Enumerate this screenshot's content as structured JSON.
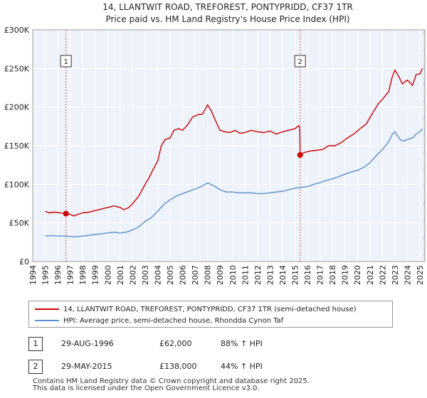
{
  "chart_data": {
    "type": "line",
    "title": "14, LLANTWIT ROAD, TREFOREST, PONTYPRIDD, CF37 1TR",
    "subtitle": "Price paid vs. HM Land Registry's House Price Index (HPI)",
    "xlabel": "",
    "ylabel": "",
    "xlim": [
      1994,
      2025.4
    ],
    "ylim": [
      0,
      300000
    ],
    "x_ticks": [
      "1994",
      "1995",
      "1996",
      "1997",
      "1998",
      "1999",
      "2000",
      "2001",
      "2002",
      "2003",
      "2004",
      "2005",
      "2006",
      "2007",
      "2008",
      "2009",
      "2010",
      "2011",
      "2012",
      "2013",
      "2014",
      "2015",
      "2016",
      "2017",
      "2018",
      "2019",
      "2020",
      "2021",
      "2022",
      "2023",
      "2024",
      "2025"
    ],
    "y_ticks": [
      {
        "value": 0,
        "label": "£0"
      },
      {
        "value": 50000,
        "label": "£50K"
      },
      {
        "value": 100000,
        "label": "£100K"
      },
      {
        "value": 150000,
        "label": "£150K"
      },
      {
        "value": 200000,
        "label": "£200K"
      },
      {
        "value": 250000,
        "label": "£250K"
      },
      {
        "value": 300000,
        "label": "£300K"
      }
    ],
    "grid": true,
    "series": [
      {
        "name": "14, LLANTWIT ROAD, TREFOREST, PONTYPRIDD, CF37 1TR (semi-detached house)",
        "color": "#cc0000",
        "points": [
          [
            1995.0,
            65000
          ],
          [
            1995.3,
            63000
          ],
          [
            1995.7,
            64000
          ],
          [
            1996.0,
            63500
          ],
          [
            1996.4,
            62500
          ],
          [
            1996.66,
            62000
          ],
          [
            1997.0,
            61000
          ],
          [
            1997.3,
            59000
          ],
          [
            1997.6,
            61000
          ],
          [
            1998.0,
            63000
          ],
          [
            1998.5,
            64000
          ],
          [
            1999.0,
            66000
          ],
          [
            1999.5,
            68000
          ],
          [
            2000.0,
            70000
          ],
          [
            2000.5,
            72000
          ],
          [
            2001.0,
            70000
          ],
          [
            2001.3,
            67000
          ],
          [
            2001.7,
            70000
          ],
          [
            2002.0,
            75000
          ],
          [
            2002.5,
            85000
          ],
          [
            2003.0,
            100000
          ],
          [
            2003.3,
            108000
          ],
          [
            2003.6,
            118000
          ],
          [
            2004.0,
            130000
          ],
          [
            2004.3,
            150000
          ],
          [
            2004.6,
            158000
          ],
          [
            2005.0,
            160000
          ],
          [
            2005.3,
            170000
          ],
          [
            2005.7,
            172000
          ],
          [
            2006.0,
            170000
          ],
          [
            2006.4,
            177000
          ],
          [
            2006.8,
            187000
          ],
          [
            2007.2,
            190000
          ],
          [
            2007.6,
            191000
          ],
          [
            2008.0,
            203000
          ],
          [
            2008.3,
            195000
          ],
          [
            2008.7,
            180000
          ],
          [
            2009.0,
            170000
          ],
          [
            2009.4,
            168000
          ],
          [
            2009.8,
            167000
          ],
          [
            2010.2,
            170000
          ],
          [
            2010.6,
            166000
          ],
          [
            2011.0,
            167000
          ],
          [
            2011.5,
            170000
          ],
          [
            2012.0,
            168000
          ],
          [
            2012.5,
            167000
          ],
          [
            2013.0,
            169000
          ],
          [
            2013.5,
            165000
          ],
          [
            2014.0,
            168000
          ],
          [
            2014.5,
            170000
          ],
          [
            2015.0,
            172000
          ],
          [
            2015.3,
            176000
          ],
          [
            2015.38,
            173000
          ],
          [
            2015.41,
            138000
          ],
          [
            2015.7,
            141000
          ],
          [
            2016.2,
            143000
          ],
          [
            2016.7,
            144000
          ],
          [
            2017.2,
            145000
          ],
          [
            2017.7,
            150000
          ],
          [
            2018.2,
            150000
          ],
          [
            2018.7,
            154000
          ],
          [
            2019.2,
            160000
          ],
          [
            2019.7,
            165000
          ],
          [
            2020.2,
            172000
          ],
          [
            2020.7,
            178000
          ],
          [
            2021.2,
            192000
          ],
          [
            2021.7,
            205000
          ],
          [
            2022.0,
            210000
          ],
          [
            2022.5,
            220000
          ],
          [
            2022.8,
            240000
          ],
          [
            2023.0,
            248000
          ],
          [
            2023.3,
            240000
          ],
          [
            2023.6,
            230000
          ],
          [
            2024.0,
            235000
          ],
          [
            2024.4,
            228000
          ],
          [
            2024.7,
            242000
          ],
          [
            2025.0,
            243000
          ],
          [
            2025.2,
            250000
          ]
        ]
      },
      {
        "name": "HPI: Average price, semi-detached house, Rhondda Cynon Taf",
        "color": "#5b8fcf",
        "points": [
          [
            1995.0,
            33000
          ],
          [
            1995.5,
            33500
          ],
          [
            1996.0,
            33000
          ],
          [
            1996.66,
            33000
          ],
          [
            1997.0,
            32500
          ],
          [
            1997.5,
            32000
          ],
          [
            1998.0,
            33000
          ],
          [
            1998.5,
            34000
          ],
          [
            1999.0,
            35000
          ],
          [
            1999.5,
            36000
          ],
          [
            2000.0,
            37000
          ],
          [
            2000.5,
            38000
          ],
          [
            2001.0,
            37000
          ],
          [
            2001.5,
            38000
          ],
          [
            2002.0,
            41000
          ],
          [
            2002.5,
            45000
          ],
          [
            2003.0,
            52000
          ],
          [
            2003.5,
            57000
          ],
          [
            2004.0,
            65000
          ],
          [
            2004.5,
            74000
          ],
          [
            2005.0,
            80000
          ],
          [
            2005.5,
            85000
          ],
          [
            2006.0,
            88000
          ],
          [
            2006.5,
            91000
          ],
          [
            2007.0,
            94000
          ],
          [
            2007.5,
            97000
          ],
          [
            2008.0,
            102000
          ],
          [
            2008.5,
            98000
          ],
          [
            2009.0,
            93000
          ],
          [
            2009.5,
            90000
          ],
          [
            2010.0,
            90000
          ],
          [
            2010.5,
            89000
          ],
          [
            2011.0,
            89000
          ],
          [
            2011.5,
            89000
          ],
          [
            2012.0,
            88000
          ],
          [
            2012.5,
            88000
          ],
          [
            2013.0,
            89000
          ],
          [
            2013.5,
            90000
          ],
          [
            2014.0,
            91000
          ],
          [
            2014.5,
            93000
          ],
          [
            2015.0,
            95000
          ],
          [
            2015.41,
            96000
          ],
          [
            2016.0,
            97000
          ],
          [
            2016.5,
            100000
          ],
          [
            2017.0,
            102000
          ],
          [
            2017.5,
            105000
          ],
          [
            2018.0,
            107000
          ],
          [
            2018.5,
            110000
          ],
          [
            2019.0,
            113000
          ],
          [
            2019.5,
            116000
          ],
          [
            2020.0,
            118000
          ],
          [
            2020.5,
            122000
          ],
          [
            2021.0,
            128000
          ],
          [
            2021.5,
            137000
          ],
          [
            2022.0,
            145000
          ],
          [
            2022.5,
            155000
          ],
          [
            2022.8,
            165000
          ],
          [
            2023.0,
            168000
          ],
          [
            2023.4,
            158000
          ],
          [
            2023.7,
            156000
          ],
          [
            2024.0,
            158000
          ],
          [
            2024.4,
            160000
          ],
          [
            2024.7,
            165000
          ],
          [
            2025.0,
            168000
          ],
          [
            2025.2,
            172000
          ]
        ]
      }
    ],
    "sales": [
      {
        "number": "1",
        "x": 1996.66,
        "price": 62000
      },
      {
        "number": "2",
        "x": 2015.41,
        "price": 138000
      }
    ]
  },
  "legend": {
    "property_label": "14, LLANTWIT ROAD, TREFOREST, PONTYPRIDD, CF37 1TR (semi-detached house)",
    "hpi_label": "HPI: Average price, semi-detached house, Rhondda Cynon Taf",
    "property_color": "#cc0000",
    "hpi_color": "#5b8fcf"
  },
  "sales_table": [
    {
      "number": "1",
      "date": "29-AUG-1996",
      "price": "£62,000",
      "hpi": "88% ↑ HPI"
    },
    {
      "number": "2",
      "date": "29-MAY-2015",
      "price": "£138,000",
      "hpi": "44% ↑ HPI"
    }
  ],
  "footer": {
    "line1": "Contains HM Land Registry data © Crown copyright and database right 2025.",
    "line2": "This data is licensed under the Open Government Licence v3.0."
  }
}
